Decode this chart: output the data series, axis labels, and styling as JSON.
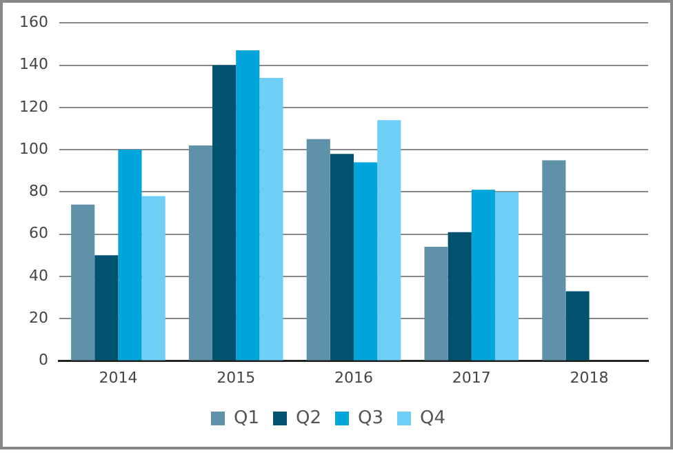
{
  "chart_data": {
    "type": "bar",
    "categories": [
      "2014",
      "2015",
      "2016",
      "2017",
      "2018"
    ],
    "series": [
      {
        "name": "Q1",
        "color": "#5f91a8",
        "values": [
          74,
          102,
          105,
          54,
          95
        ]
      },
      {
        "name": "Q2",
        "color": "#00526e",
        "values": [
          50,
          140,
          98,
          61,
          33
        ]
      },
      {
        "name": "Q3",
        "color": "#00a5dc",
        "values": [
          100,
          147,
          94,
          81,
          null
        ]
      },
      {
        "name": "Q4",
        "color": "#6dcff6",
        "values": [
          78,
          134,
          114,
          80,
          null
        ]
      }
    ],
    "ylim": [
      0,
      160
    ],
    "yticks": [
      0,
      20,
      40,
      60,
      80,
      100,
      120,
      140,
      160
    ],
    "grid": "y",
    "legend": "bottom"
  }
}
